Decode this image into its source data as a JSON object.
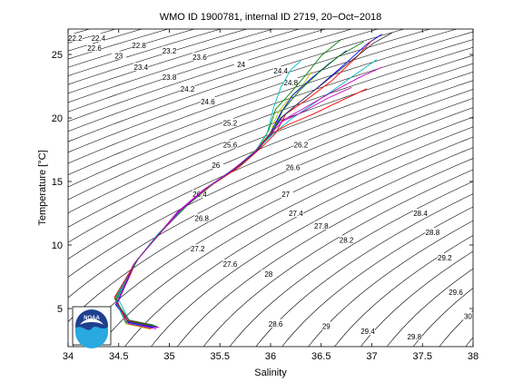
{
  "chart_data": {
    "type": "line",
    "title": "WMO ID 1900781, internal ID 2719, 20−Oct−2018",
    "xlabel": "Salinity",
    "ylabel": "Temperature [°C]",
    "xlim": [
      34,
      38
    ],
    "ylim": [
      2,
      27
    ],
    "x_ticks": [
      34,
      34.5,
      35,
      35.5,
      36,
      36.5,
      37,
      37.5,
      38
    ],
    "x_tick_labels": [
      "34",
      "34.5",
      "35",
      "35.5",
      "36",
      "36.5",
      "37",
      "37.5",
      "38"
    ],
    "y_ticks": [
      5,
      10,
      15,
      20,
      25
    ],
    "y_tick_labels": [
      "5",
      "10",
      "15",
      "20",
      "25"
    ],
    "grid": false,
    "density_isopleths": {
      "range": [
        22.2,
        30
      ],
      "step": 0.2,
      "labels": [
        {
          "t": "22.2",
          "s": 34.07,
          "T": 26.3
        },
        {
          "t": "22.4",
          "s": 34.3,
          "T": 26.3
        },
        {
          "t": "22.6",
          "s": 34.26,
          "T": 25.5
        },
        {
          "t": "22.8",
          "s": 34.7,
          "T": 25.7
        },
        {
          "t": "23",
          "s": 34.5,
          "T": 24.9
        },
        {
          "t": "23.2",
          "s": 35.0,
          "T": 25.3
        },
        {
          "t": "23.4",
          "s": 34.72,
          "T": 24.0
        },
        {
          "t": "23.6",
          "s": 35.3,
          "T": 24.8
        },
        {
          "t": "23.8",
          "s": 35.0,
          "T": 23.2
        },
        {
          "t": "24",
          "s": 35.71,
          "T": 24.2
        },
        {
          "t": "24.2",
          "s": 35.18,
          "T": 22.3
        },
        {
          "t": "24.4",
          "s": 36.1,
          "T": 23.7
        },
        {
          "t": "24.6",
          "s": 35.38,
          "T": 21.3
        },
        {
          "t": "24.8",
          "s": 36.2,
          "T": 22.8
        },
        {
          "t": "25.2",
          "s": 35.6,
          "T": 19.6
        },
        {
          "t": "25.6",
          "s": 35.6,
          "T": 17.9
        },
        {
          "t": "26",
          "s": 35.46,
          "T": 16.3
        },
        {
          "t": "26.2",
          "s": 36.3,
          "T": 17.9
        },
        {
          "t": "26.4",
          "s": 35.3,
          "T": 14.0
        },
        {
          "t": "26.6",
          "s": 36.22,
          "T": 16.1
        },
        {
          "t": "26.8",
          "s": 35.32,
          "T": 12.1
        },
        {
          "t": "27",
          "s": 36.15,
          "T": 14.0
        },
        {
          "t": "27.2",
          "s": 35.28,
          "T": 9.7
        },
        {
          "t": "27.4",
          "s": 36.25,
          "T": 12.5
        },
        {
          "t": "27.6",
          "s": 35.6,
          "T": 8.5
        },
        {
          "t": "27.8",
          "s": 36.5,
          "T": 11.5
        },
        {
          "t": "28",
          "s": 35.98,
          "T": 7.7
        },
        {
          "t": "28.2",
          "s": 36.75,
          "T": 10.4
        },
        {
          "t": "28.4",
          "s": 37.48,
          "T": 12.5
        },
        {
          "t": "28.6",
          "s": 36.05,
          "T": 3.8
        },
        {
          "t": "28.8",
          "s": 37.6,
          "T": 11.0
        },
        {
          "t": "29",
          "s": 36.55,
          "T": 3.6
        },
        {
          "t": "29.2",
          "s": 37.72,
          "T": 9.0
        },
        {
          "t": "29.4",
          "s": 36.96,
          "T": 3.2
        },
        {
          "t": "29.6",
          "s": 37.83,
          "T": 6.3
        },
        {
          "t": "29.8",
          "s": 37.42,
          "T": 2.8
        },
        {
          "t": "30",
          "s": 37.95,
          "T": 4.4
        }
      ]
    },
    "series": [
      {
        "color": "#0000ff",
        "points": [
          [
            34.88,
            3.5
          ],
          [
            34.6,
            3.9
          ],
          [
            34.47,
            5.3
          ],
          [
            34.65,
            8.5
          ],
          [
            34.9,
            10.9
          ],
          [
            35.1,
            12.7
          ],
          [
            35.35,
            14.4
          ],
          [
            35.65,
            16.0
          ],
          [
            35.85,
            17.4
          ],
          [
            36.0,
            18.6
          ],
          [
            36.1,
            20.0
          ],
          [
            36.25,
            21.0
          ],
          [
            36.45,
            22.3
          ],
          [
            36.7,
            24.0
          ],
          [
            36.95,
            25.8
          ],
          [
            37.1,
            26.6
          ]
        ]
      },
      {
        "color": "#ff0000",
        "points": [
          [
            34.82,
            3.4
          ],
          [
            34.58,
            3.8
          ],
          [
            34.49,
            5.5
          ],
          [
            34.68,
            8.8
          ],
          [
            34.92,
            11.1
          ],
          [
            35.15,
            13.0
          ],
          [
            35.4,
            14.6
          ],
          [
            35.7,
            16.2
          ],
          [
            35.9,
            17.6
          ],
          [
            36.05,
            18.8
          ],
          [
            36.15,
            20.3
          ],
          [
            36.35,
            21.4
          ],
          [
            36.6,
            22.9
          ],
          [
            36.85,
            24.8
          ],
          [
            37.0,
            26.1
          ]
        ]
      },
      {
        "color": "#008000",
        "points": [
          [
            34.79,
            3.6
          ],
          [
            34.56,
            4.0
          ],
          [
            34.46,
            5.8
          ],
          [
            34.7,
            9.0
          ],
          [
            34.95,
            11.3
          ],
          [
            35.2,
            13.3
          ],
          [
            35.45,
            14.9
          ],
          [
            35.72,
            16.4
          ],
          [
            35.88,
            17.7
          ],
          [
            35.98,
            19.0
          ],
          [
            36.05,
            20.7
          ],
          [
            36.2,
            22.0
          ],
          [
            36.35,
            23.4
          ],
          [
            36.5,
            24.9
          ],
          [
            36.7,
            26.2
          ]
        ]
      },
      {
        "color": "#00bfbf",
        "points": [
          [
            34.85,
            3.7
          ],
          [
            34.6,
            4.1
          ],
          [
            34.48,
            6.0
          ],
          [
            34.66,
            8.6
          ],
          [
            34.88,
            10.8
          ],
          [
            35.12,
            12.8
          ],
          [
            35.38,
            14.5
          ],
          [
            35.66,
            16.1
          ],
          [
            35.86,
            17.5
          ],
          [
            36.02,
            18.7
          ],
          [
            36.2,
            19.9
          ],
          [
            36.4,
            21.0
          ],
          [
            36.62,
            22.2
          ],
          [
            36.85,
            23.5
          ],
          [
            37.05,
            24.6
          ]
        ]
      },
      {
        "color": "#bf00bf",
        "points": [
          [
            34.9,
            3.5
          ],
          [
            34.62,
            3.9
          ],
          [
            34.47,
            5.4
          ],
          [
            34.64,
            8.4
          ],
          [
            34.9,
            10.9
          ],
          [
            35.08,
            12.6
          ],
          [
            35.33,
            14.3
          ],
          [
            35.62,
            15.9
          ],
          [
            35.83,
            17.2
          ],
          [
            35.96,
            18.4
          ],
          [
            36.08,
            19.6
          ],
          [
            36.3,
            20.4
          ],
          [
            36.55,
            21.5
          ],
          [
            36.8,
            22.4
          ]
        ]
      },
      {
        "color": "#bfbf00",
        "points": [
          [
            34.8,
            3.4
          ],
          [
            34.57,
            3.8
          ],
          [
            34.48,
            5.6
          ],
          [
            34.67,
            8.7
          ],
          [
            34.93,
            11.2
          ],
          [
            35.17,
            13.1
          ],
          [
            35.42,
            14.7
          ],
          [
            35.69,
            16.3
          ],
          [
            35.87,
            17.6
          ],
          [
            36.0,
            18.9
          ],
          [
            36.08,
            20.5
          ],
          [
            36.18,
            21.5
          ],
          [
            36.32,
            22.6
          ],
          [
            36.4,
            23.6
          ]
        ]
      },
      {
        "color": "#404040",
        "points": [
          [
            34.86,
            3.6
          ],
          [
            34.59,
            4.0
          ],
          [
            34.47,
            5.7
          ],
          [
            34.69,
            8.9
          ],
          [
            34.94,
            11.2
          ],
          [
            35.18,
            13.2
          ],
          [
            35.43,
            14.8
          ],
          [
            35.7,
            16.3
          ],
          [
            35.89,
            17.6
          ],
          [
            36.01,
            18.9
          ],
          [
            36.12,
            20.1
          ],
          [
            36.28,
            21.2
          ],
          [
            36.5,
            22.6
          ],
          [
            36.78,
            24.4
          ],
          [
            37.02,
            25.9
          ],
          [
            37.2,
            26.7
          ]
        ]
      },
      {
        "color": "#0000ff",
        "points": [
          [
            34.84,
            3.5
          ],
          [
            34.6,
            3.9
          ],
          [
            34.48,
            5.3
          ],
          [
            34.66,
            8.6
          ],
          [
            34.91,
            11.0
          ],
          [
            35.14,
            12.9
          ],
          [
            35.39,
            14.6
          ],
          [
            35.68,
            16.2
          ],
          [
            35.87,
            17.5
          ],
          [
            36.0,
            18.8
          ],
          [
            36.1,
            20.4
          ],
          [
            36.22,
            21.8
          ],
          [
            36.4,
            23.1
          ],
          [
            36.58,
            24.3
          ],
          [
            36.75,
            25.3
          ]
        ]
      },
      {
        "color": "#ff0000",
        "points": [
          [
            34.83,
            3.7
          ],
          [
            34.58,
            4.1
          ],
          [
            34.46,
            5.9
          ],
          [
            34.67,
            8.7
          ],
          [
            34.9,
            10.9
          ],
          [
            35.13,
            12.8
          ],
          [
            35.37,
            14.5
          ],
          [
            35.66,
            16.1
          ],
          [
            35.85,
            17.4
          ],
          [
            35.99,
            18.7
          ],
          [
            36.18,
            19.5
          ],
          [
            36.42,
            20.3
          ],
          [
            36.68,
            21.3
          ],
          [
            36.95,
            22.3
          ]
        ]
      },
      {
        "color": "#008000",
        "points": [
          [
            34.88,
            3.6
          ],
          [
            34.61,
            4.0
          ],
          [
            34.47,
            5.6
          ],
          [
            34.68,
            8.8
          ],
          [
            34.92,
            11.1
          ],
          [
            35.16,
            13.0
          ],
          [
            35.41,
            14.7
          ],
          [
            35.69,
            16.3
          ],
          [
            35.88,
            17.6
          ],
          [
            36.02,
            18.9
          ],
          [
            36.12,
            20.6
          ],
          [
            36.28,
            22.1
          ],
          [
            36.48,
            23.6
          ],
          [
            36.68,
            24.9
          ],
          [
            36.92,
            26.0
          ]
        ]
      },
      {
        "color": "#00bfbf",
        "points": [
          [
            34.81,
            3.5
          ],
          [
            34.57,
            3.9
          ],
          [
            34.47,
            5.5
          ],
          [
            34.66,
            8.6
          ],
          [
            34.91,
            11.0
          ],
          [
            35.14,
            12.9
          ],
          [
            35.39,
            14.6
          ],
          [
            35.67,
            16.2
          ],
          [
            35.86,
            17.5
          ],
          [
            35.97,
            18.9
          ],
          [
            36.03,
            20.8
          ],
          [
            36.1,
            22.4
          ],
          [
            36.2,
            23.8
          ],
          [
            36.3,
            24.5
          ]
        ]
      },
      {
        "color": "#bf00bf",
        "points": [
          [
            34.87,
            3.4
          ],
          [
            34.6,
            3.8
          ],
          [
            34.48,
            5.4
          ],
          [
            34.65,
            8.5
          ],
          [
            34.89,
            10.8
          ],
          [
            35.11,
            12.7
          ],
          [
            35.36,
            14.4
          ],
          [
            35.64,
            16.0
          ],
          [
            35.84,
            17.3
          ],
          [
            35.98,
            18.6
          ],
          [
            36.14,
            19.9
          ],
          [
            36.36,
            20.9
          ],
          [
            36.62,
            22.1
          ],
          [
            36.88,
            23.2
          ],
          [
            37.1,
            24.0
          ]
        ]
      }
    ]
  },
  "logo": {
    "text": "NOAA"
  }
}
